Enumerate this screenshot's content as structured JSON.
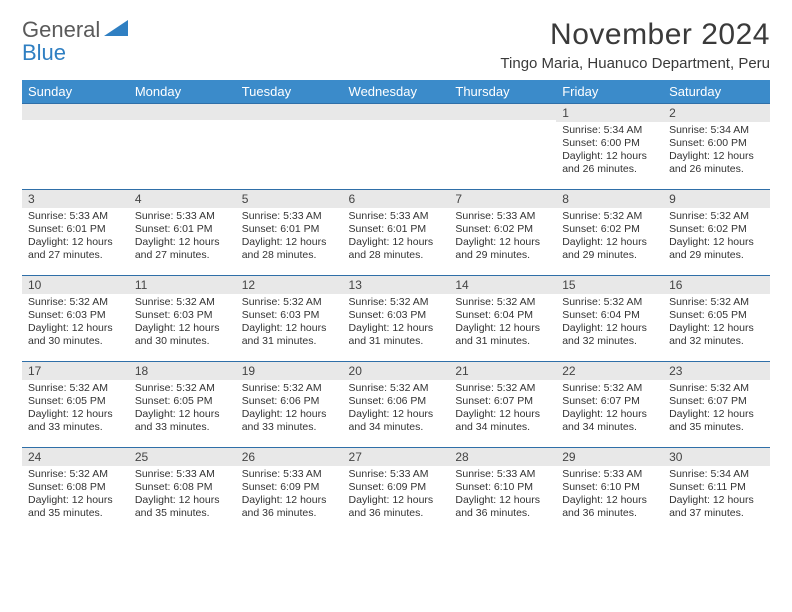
{
  "logo": {
    "line1": "General",
    "line2": "Blue"
  },
  "title": "November 2024",
  "location": "Tingo Maria, Huanuco Department, Peru",
  "colors": {
    "header_bg": "#3b8bca",
    "header_fg": "#ffffff",
    "row_divider": "#2f6fa8",
    "daynum_bg": "#e8e8e8",
    "logo_gray": "#5a5a5a",
    "logo_blue": "#2f7fc2"
  },
  "weekdays": [
    "Sunday",
    "Monday",
    "Tuesday",
    "Wednesday",
    "Thursday",
    "Friday",
    "Saturday"
  ],
  "weeks": [
    [
      null,
      null,
      null,
      null,
      null,
      {
        "n": "1",
        "sr": "5:34 AM",
        "ss": "6:00 PM",
        "dl": "12 hours and 26 minutes."
      },
      {
        "n": "2",
        "sr": "5:34 AM",
        "ss": "6:00 PM",
        "dl": "12 hours and 26 minutes."
      }
    ],
    [
      {
        "n": "3",
        "sr": "5:33 AM",
        "ss": "6:01 PM",
        "dl": "12 hours and 27 minutes."
      },
      {
        "n": "4",
        "sr": "5:33 AM",
        "ss": "6:01 PM",
        "dl": "12 hours and 27 minutes."
      },
      {
        "n": "5",
        "sr": "5:33 AM",
        "ss": "6:01 PM",
        "dl": "12 hours and 28 minutes."
      },
      {
        "n": "6",
        "sr": "5:33 AM",
        "ss": "6:01 PM",
        "dl": "12 hours and 28 minutes."
      },
      {
        "n": "7",
        "sr": "5:33 AM",
        "ss": "6:02 PM",
        "dl": "12 hours and 29 minutes."
      },
      {
        "n": "8",
        "sr": "5:32 AM",
        "ss": "6:02 PM",
        "dl": "12 hours and 29 minutes."
      },
      {
        "n": "9",
        "sr": "5:32 AM",
        "ss": "6:02 PM",
        "dl": "12 hours and 29 minutes."
      }
    ],
    [
      {
        "n": "10",
        "sr": "5:32 AM",
        "ss": "6:03 PM",
        "dl": "12 hours and 30 minutes."
      },
      {
        "n": "11",
        "sr": "5:32 AM",
        "ss": "6:03 PM",
        "dl": "12 hours and 30 minutes."
      },
      {
        "n": "12",
        "sr": "5:32 AM",
        "ss": "6:03 PM",
        "dl": "12 hours and 31 minutes."
      },
      {
        "n": "13",
        "sr": "5:32 AM",
        "ss": "6:03 PM",
        "dl": "12 hours and 31 minutes."
      },
      {
        "n": "14",
        "sr": "5:32 AM",
        "ss": "6:04 PM",
        "dl": "12 hours and 31 minutes."
      },
      {
        "n": "15",
        "sr": "5:32 AM",
        "ss": "6:04 PM",
        "dl": "12 hours and 32 minutes."
      },
      {
        "n": "16",
        "sr": "5:32 AM",
        "ss": "6:05 PM",
        "dl": "12 hours and 32 minutes."
      }
    ],
    [
      {
        "n": "17",
        "sr": "5:32 AM",
        "ss": "6:05 PM",
        "dl": "12 hours and 33 minutes."
      },
      {
        "n": "18",
        "sr": "5:32 AM",
        "ss": "6:05 PM",
        "dl": "12 hours and 33 minutes."
      },
      {
        "n": "19",
        "sr": "5:32 AM",
        "ss": "6:06 PM",
        "dl": "12 hours and 33 minutes."
      },
      {
        "n": "20",
        "sr": "5:32 AM",
        "ss": "6:06 PM",
        "dl": "12 hours and 34 minutes."
      },
      {
        "n": "21",
        "sr": "5:32 AM",
        "ss": "6:07 PM",
        "dl": "12 hours and 34 minutes."
      },
      {
        "n": "22",
        "sr": "5:32 AM",
        "ss": "6:07 PM",
        "dl": "12 hours and 34 minutes."
      },
      {
        "n": "23",
        "sr": "5:32 AM",
        "ss": "6:07 PM",
        "dl": "12 hours and 35 minutes."
      }
    ],
    [
      {
        "n": "24",
        "sr": "5:32 AM",
        "ss": "6:08 PM",
        "dl": "12 hours and 35 minutes."
      },
      {
        "n": "25",
        "sr": "5:33 AM",
        "ss": "6:08 PM",
        "dl": "12 hours and 35 minutes."
      },
      {
        "n": "26",
        "sr": "5:33 AM",
        "ss": "6:09 PM",
        "dl": "12 hours and 36 minutes."
      },
      {
        "n": "27",
        "sr": "5:33 AM",
        "ss": "6:09 PM",
        "dl": "12 hours and 36 minutes."
      },
      {
        "n": "28",
        "sr": "5:33 AM",
        "ss": "6:10 PM",
        "dl": "12 hours and 36 minutes."
      },
      {
        "n": "29",
        "sr": "5:33 AM",
        "ss": "6:10 PM",
        "dl": "12 hours and 36 minutes."
      },
      {
        "n": "30",
        "sr": "5:34 AM",
        "ss": "6:11 PM",
        "dl": "12 hours and 37 minutes."
      }
    ]
  ],
  "labels": {
    "sunrise": "Sunrise:",
    "sunset": "Sunset:",
    "daylight": "Daylight:"
  }
}
